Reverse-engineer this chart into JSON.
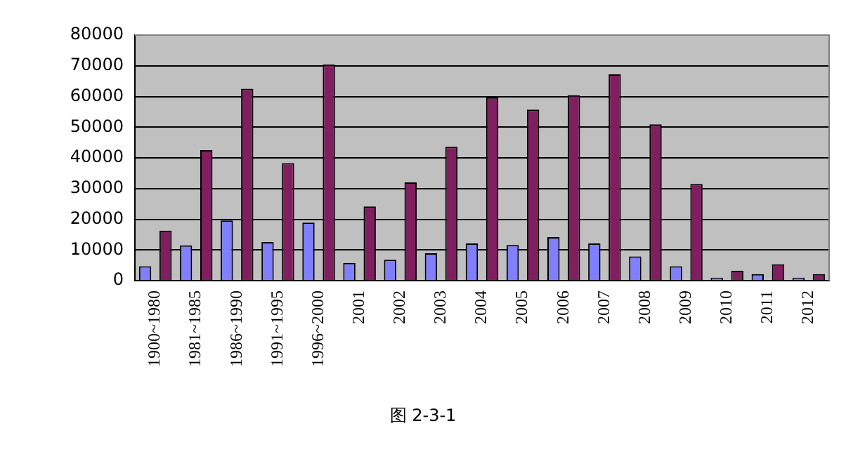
{
  "chart_data": {
    "type": "bar",
    "categories": [
      "1900~1980",
      "1981~1985",
      "1986~1990",
      "1991~1995",
      "1996~2000",
      "2001",
      "2002",
      "2003",
      "2004",
      "2005",
      "2006",
      "2007",
      "2008",
      "2009",
      "2010",
      "2011",
      "2012"
    ],
    "series": [
      {
        "color": "#8080ff",
        "values": [
          4700,
          11500,
          19600,
          12600,
          18900,
          5800,
          6800,
          8900,
          12100,
          11600,
          14200,
          12100,
          7900,
          4700,
          1000,
          2100,
          1000
        ]
      },
      {
        "color": "#801f5f",
        "values": [
          16300,
          42500,
          62500,
          38300,
          70400,
          24200,
          32000,
          43600,
          59700,
          55700,
          60400,
          67200,
          50900,
          31500,
          3200,
          5300,
          2100
        ]
      }
    ],
    "ylim": [
      0,
      80000
    ],
    "yticks": [
      0,
      10000,
      20000,
      30000,
      40000,
      50000,
      60000,
      70000,
      80000
    ],
    "grid": "y",
    "legend": false,
    "annotations": [
      "图 2-3-1"
    ]
  }
}
